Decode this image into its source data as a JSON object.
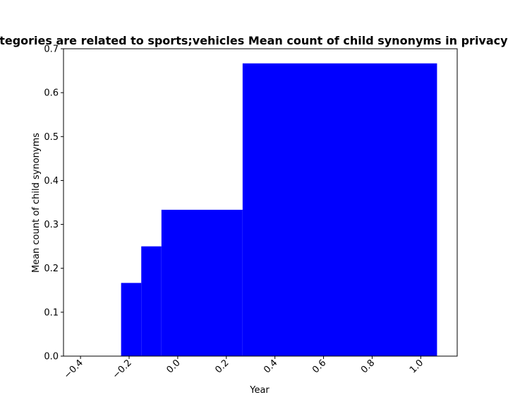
{
  "chart_data": {
    "type": "bar",
    "title": "Top categories are related to sports;vehicles Mean count of child synonyms in privacy policies",
    "xlabel": "Year",
    "ylabel": "Mean count of child synonyms",
    "xlim": [
      -0.47,
      1.15
    ],
    "ylim": [
      0,
      0.7
    ],
    "xticks": [
      -0.4,
      -0.2,
      0.0,
      0.2,
      0.4,
      0.6,
      0.8,
      1.0
    ],
    "xtick_labels": [
      "−0.4",
      "−0.2",
      "0.0",
      "0.2",
      "0.4",
      "0.6",
      "0.8",
      "1.0"
    ],
    "yticks": [
      0.0,
      0.1,
      0.2,
      0.3,
      0.4,
      0.5,
      0.6,
      0.7
    ],
    "ytick_labels": [
      "0.0",
      "0.1",
      "0.2",
      "0.3",
      "0.4",
      "0.5",
      "0.6",
      "0.7"
    ],
    "bar_color": "#0000ff",
    "bars": [
      {
        "x_start": -0.233,
        "x_end": -0.15,
        "value": 0.1667
      },
      {
        "x_start": -0.15,
        "x_end": -0.067,
        "value": 0.25
      },
      {
        "x_start": -0.067,
        "x_end": 0.267,
        "value": 0.3333
      },
      {
        "x_start": 0.267,
        "x_end": 1.067,
        "value": 0.6667
      }
    ]
  }
}
